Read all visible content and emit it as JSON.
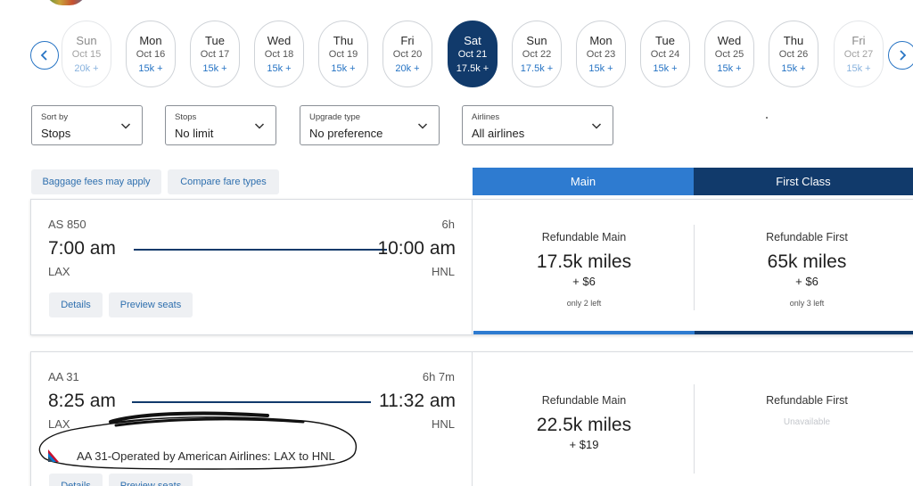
{
  "date_nav": {
    "prev_label": "Previous dates",
    "next_label": "Next dates",
    "dates": [
      {
        "dow": "Sun",
        "date": "Oct 15",
        "price": "20k +",
        "state": "faded"
      },
      {
        "dow": "Mon",
        "date": "Oct 16",
        "price": "15k +",
        "state": "normal"
      },
      {
        "dow": "Tue",
        "date": "Oct 17",
        "price": "15k +",
        "state": "normal"
      },
      {
        "dow": "Wed",
        "date": "Oct 18",
        "price": "15k +",
        "state": "normal"
      },
      {
        "dow": "Thu",
        "date": "Oct 19",
        "price": "15k +",
        "state": "normal"
      },
      {
        "dow": "Fri",
        "date": "Oct 20",
        "price": "20k +",
        "state": "normal"
      },
      {
        "dow": "Sat",
        "date": "Oct 21",
        "price": "17.5k +",
        "state": "selected"
      },
      {
        "dow": "Sun",
        "date": "Oct 22",
        "price": "17.5k +",
        "state": "normal"
      },
      {
        "dow": "Mon",
        "date": "Oct 23",
        "price": "15k +",
        "state": "normal"
      },
      {
        "dow": "Tue",
        "date": "Oct 24",
        "price": "15k +",
        "state": "normal"
      },
      {
        "dow": "Wed",
        "date": "Oct 25",
        "price": "15k +",
        "state": "normal"
      },
      {
        "dow": "Thu",
        "date": "Oct 26",
        "price": "15k +",
        "state": "normal"
      },
      {
        "dow": "Fri",
        "date": "Oct 27",
        "price": "15k +",
        "state": "faded"
      }
    ]
  },
  "filters": {
    "sort": {
      "label": "Sort by",
      "value": "Stops"
    },
    "stops": {
      "label": "Stops",
      "value": "No limit"
    },
    "upgrade": {
      "label": "Upgrade type",
      "value": "No preference"
    },
    "airlines": {
      "label": "Airlines",
      "value": "All airlines"
    }
  },
  "tags": {
    "baggage": "Baggage fees may apply",
    "compare": "Compare fare types"
  },
  "cabin_tabs": {
    "main": "Main",
    "first": "First Class"
  },
  "flights": [
    {
      "flight_no": "AS 850",
      "duration": "6h",
      "depart_time": "7:00 am",
      "arrive_time": "10:00 am",
      "origin": "LAX",
      "destination": "HNL",
      "details_label": "Details",
      "seats_label": "Preview seats",
      "main_fare": {
        "title": "Refundable Main",
        "miles": "17.5k miles",
        "tax": "+ $6",
        "left": "only 2 left"
      },
      "first_fare": {
        "title": "Refundable First",
        "miles": "65k miles",
        "tax": "+ $6",
        "left": "only 3 left"
      }
    },
    {
      "flight_no": "AA 31",
      "duration": "6h 7m",
      "depart_time": "8:25 am",
      "arrive_time": "11:32 am",
      "origin": "LAX",
      "destination": "HNL",
      "details_label": "Details",
      "seats_label": "Preview seats",
      "operated_by": "AA 31-Operated by American Airlines: LAX to HNL",
      "main_fare": {
        "title": "Refundable Main",
        "miles": "22.5k miles",
        "tax": "+ $19"
      },
      "first_fare": {
        "title": "Refundable First",
        "status": "Unavailable"
      }
    }
  ],
  "colors": {
    "accent_blue": "#2e7bd0",
    "navy": "#113a6b",
    "link_blue": "#2774c4"
  },
  "icons": {
    "prev": "chevron-left-icon",
    "next": "chevron-right-icon",
    "dropdown": "chevron-down-icon",
    "airline": "american-airlines-logo-icon"
  }
}
